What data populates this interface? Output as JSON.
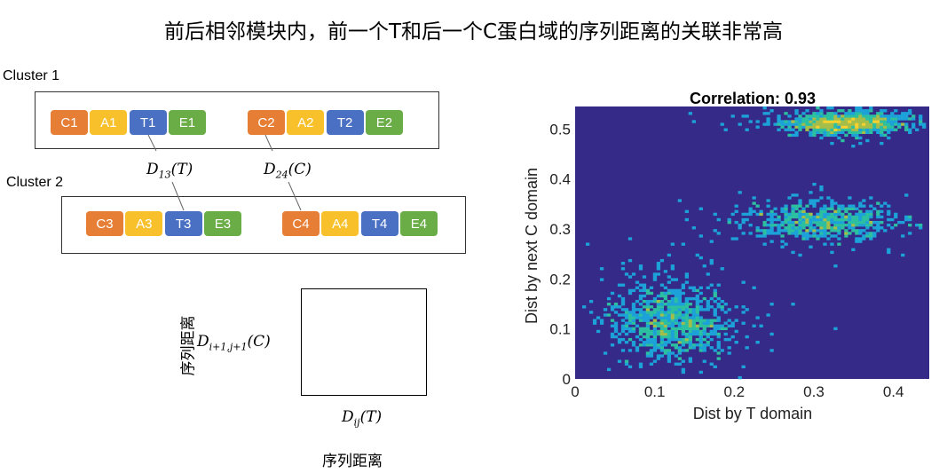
{
  "title": "前后相邻模块内，前一个T和后一个C蛋白域的序列距离的关联非常高",
  "diagram": {
    "clusters": [
      {
        "label": "Cluster 1",
        "modules": [
          [
            "C1",
            "A1",
            "T1",
            "E1"
          ],
          [
            "C2",
            "A2",
            "T2",
            "E2"
          ]
        ]
      },
      {
        "label": "Cluster 2",
        "modules": [
          [
            "C3",
            "A3",
            "T3",
            "E3"
          ],
          [
            "C4",
            "A4",
            "T4",
            "E4"
          ]
        ]
      }
    ],
    "d13": {
      "main": "D",
      "sub": "13",
      "arg": "(T)"
    },
    "d24": {
      "main": "D",
      "sub": "24",
      "arg": "(C)"
    },
    "yaxis_math": {
      "main": "D",
      "sub": "i+1,j+1",
      "arg": "(C)"
    },
    "xaxis_math": {
      "main": "D",
      "sub": "ij",
      "arg": "(T)"
    },
    "axis_cn": "序列距离",
    "colors": {
      "C": "#e67e35",
      "A": "#f8c12b",
      "T": "#4a70c4",
      "E": "#6aac45"
    }
  },
  "chart_data": {
    "type": "heatmap",
    "title": "Correlation: 0.93",
    "xlabel": "Dist by T domain",
    "ylabel": "Dist by next C domain",
    "xlim": [
      0,
      0.445
    ],
    "ylim": [
      0,
      0.545
    ],
    "xticks": [
      "0",
      "0.1",
      "0.2",
      "0.3",
      "0.4"
    ],
    "yticks": [
      "0",
      "0.1",
      "0.2",
      "0.3",
      "0.4",
      "0.5"
    ],
    "colormap": [
      "#352a87",
      "#0f5cdd",
      "#1ca2d8",
      "#2cbfa0",
      "#a5be4a",
      "#f9d12f"
    ],
    "clusters": [
      {
        "cx": 0.12,
        "cy": 0.115,
        "sx": 0.035,
        "sy": 0.035,
        "n": 900
      },
      {
        "cx": 0.31,
        "cy": 0.315,
        "sx": 0.045,
        "sy": 0.018,
        "n": 650
      },
      {
        "cx": 0.34,
        "cy": 0.512,
        "sx": 0.035,
        "sy": 0.01,
        "n": 900
      }
    ]
  }
}
